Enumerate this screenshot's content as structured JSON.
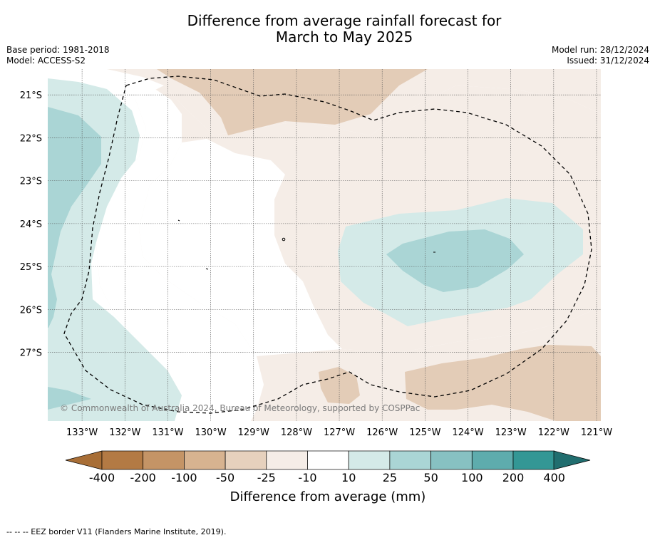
{
  "title": {
    "line1": "Difference from average rainfall forecast for",
    "line2": "March to May 2025"
  },
  "meta": {
    "base_period": "Base period: 1981-2018",
    "model": "Model: ACCESS-S2",
    "model_run": "Model run: 28/12/2024",
    "issued": "Issued: 31/12/2024"
  },
  "map": {
    "lon_labels": [
      "133°W",
      "132°W",
      "131°W",
      "130°W",
      "129°W",
      "128°W",
      "127°W",
      "126°W",
      "125°W",
      "124°W",
      "123°W",
      "122°W",
      "121°W"
    ],
    "lat_labels": [
      "21°S",
      "22°S",
      "23°S",
      "24°S",
      "25°S",
      "26°S",
      "27°S"
    ],
    "lon_range": [
      -133.8,
      -120.9
    ],
    "lat_range": [
      -28.6,
      -20.4
    ],
    "copyright": "© Commonwealth of Australia 2024, Bureau of Meteorology, supported by COSPPac",
    "eez_border": "dashed"
  },
  "legend": {
    "ticks": [
      "-400",
      "-200",
      "-100",
      "-50",
      "-25",
      "-10",
      "10",
      "25",
      "50",
      "100",
      "200",
      "400"
    ],
    "colors": [
      "#a86e36",
      "#b37a44",
      "#c49466",
      "#d7b390",
      "#e6d1bd",
      "#f5ede7",
      "#ffffff",
      "#d4eae8",
      "#aad5d5",
      "#87c1c2",
      "#5eacad",
      "#339795",
      "#216e6f"
    ],
    "label": "Difference from average (mm)"
  },
  "footnote": "--  --  -- EEZ border V11 (Flanders Marine Institute, 2019)."
}
